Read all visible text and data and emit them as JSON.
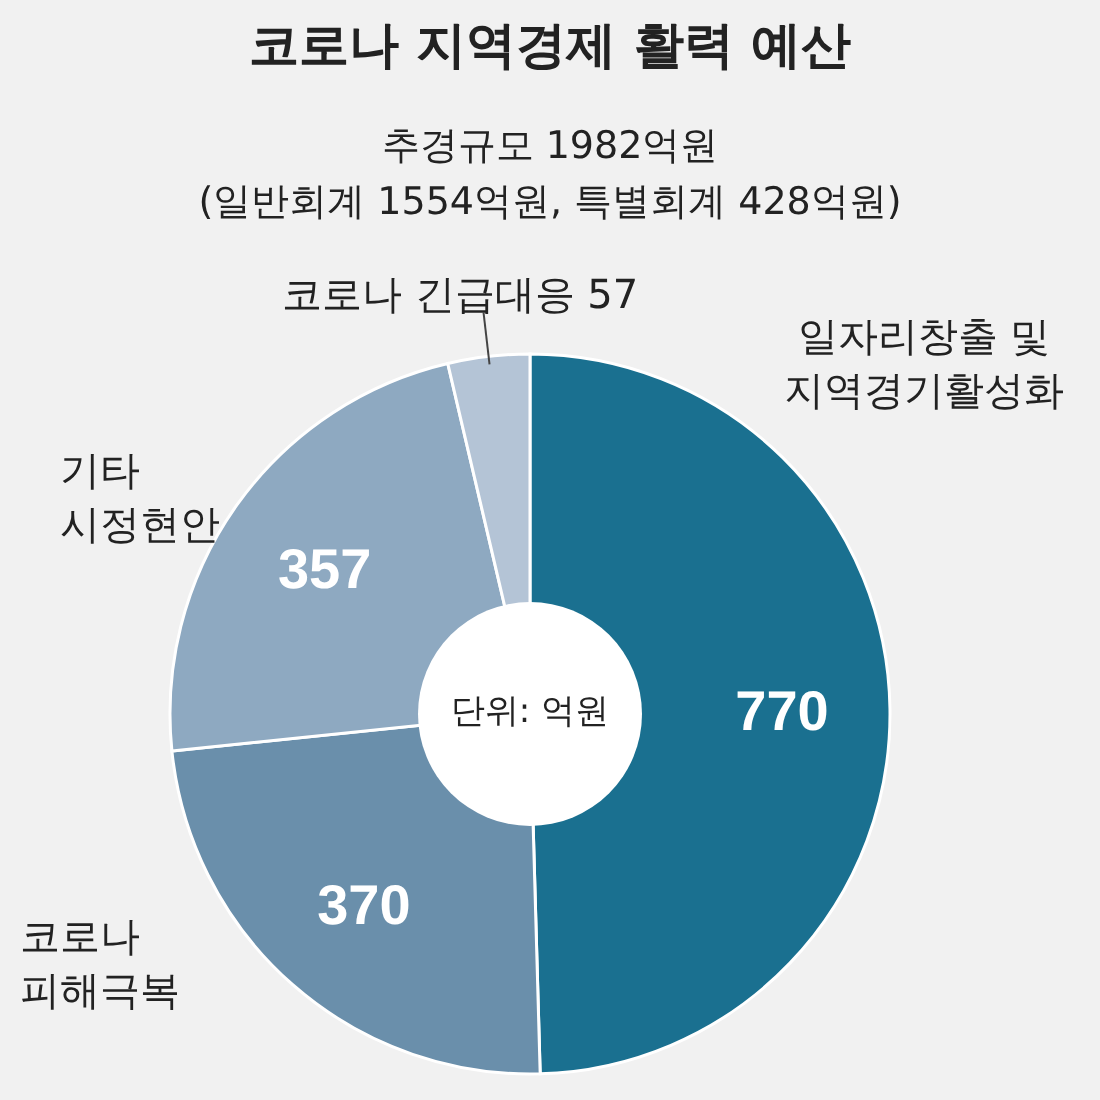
{
  "chart_data": {
    "type": "donut",
    "title": "코로나 지역경제 활력 예산",
    "subtitle": "추경규모 1982억원",
    "annotations": [
      "(일반회계 1554억원, 특별회계 428억원)",
      "단위: 억원"
    ],
    "categories": [
      "일자리창출 및 지역경기활성화",
      "코로나 피해극복",
      "기타 시정현안",
      "코로나 긴급대응"
    ],
    "values": [
      770,
      370,
      357,
      57
    ],
    "colors": [
      "#1a7090",
      "#6a8fab",
      "#8ea9c1",
      "#b4c4d6"
    ],
    "data_labels": true
  }
}
